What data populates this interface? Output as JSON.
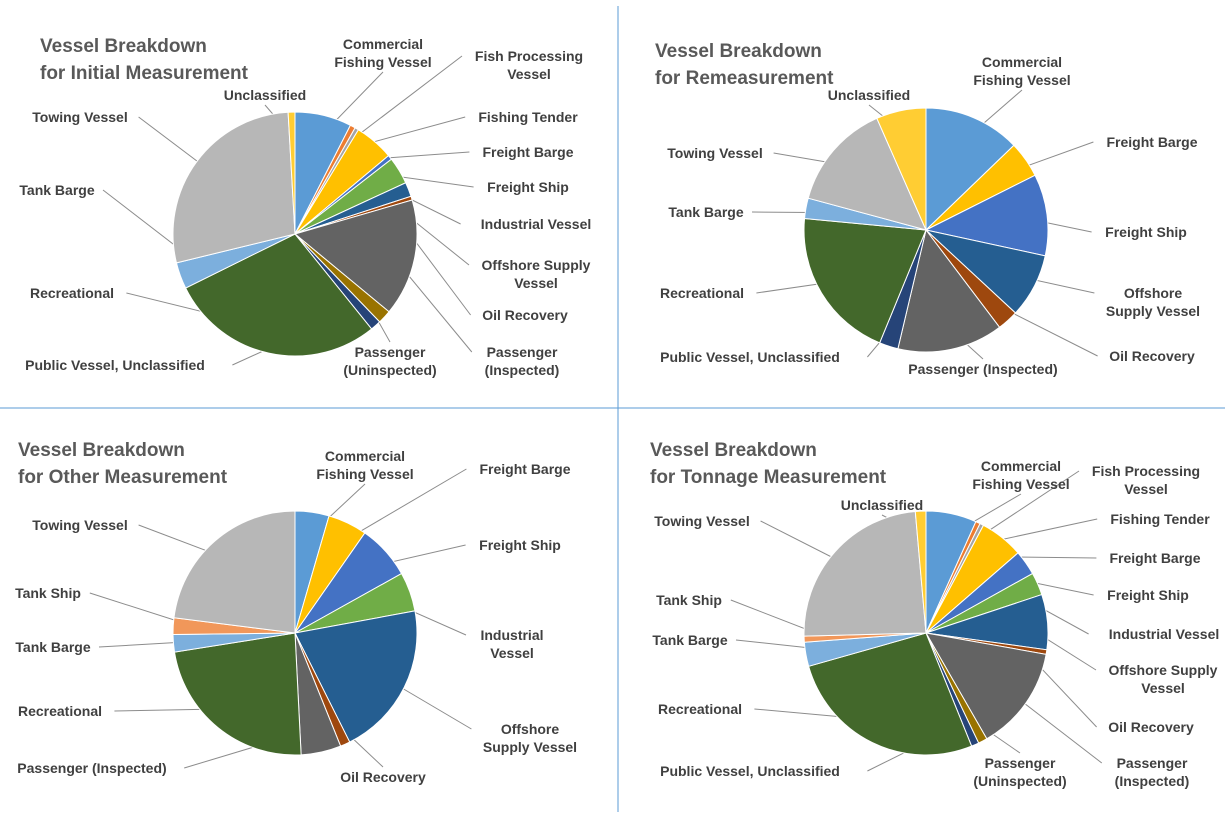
{
  "colors": {
    "Commercial Fishing Vessel": "#5b9bd5",
    "Fish Processing Vessel": "#ed7d31",
    "Fishing Tender": "#a5a5a5",
    "Freight Barge": "#ffc000",
    "Freight Ship": "#4472c4",
    "Industrial Vessel": "#70ad47",
    "Offshore Supply Vessel": "#255e91",
    "Oil Recovery": "#9e480e",
    "Passenger (Inspected)": "#636363",
    "Passenger (Uninspected)": "#997300",
    "Public Vessel, Unclassified": "#264478",
    "Recreational": "#43682b",
    "Tank Barge": "#7cafdd",
    "Tank Ship": "#f1975a",
    "Towing Vessel": "#b7b7b7",
    "Unclassified": "#ffcd33"
  },
  "chart_data": [
    {
      "type": "pie",
      "title": [
        "Vessel Breakdown",
        "for Initial Measurement"
      ],
      "slices": [
        {
          "category": "Commercial Fishing Vessel",
          "value": 7.5,
          "label": [
            "Commercial",
            "Fishing Vessel"
          ]
        },
        {
          "category": "Fish Processing Vessel",
          "value": 0.7,
          "label": [
            "Fish Processing",
            "Vessel"
          ]
        },
        {
          "category": "Fishing Tender",
          "value": 0.5,
          "label": [
            "Fishing Tender"
          ]
        },
        {
          "category": "Freight Barge",
          "value": 5.2,
          "label": [
            "Freight Barge"
          ]
        },
        {
          "category": "Freight Ship",
          "value": 0.6,
          "label": [
            "Freight Ship"
          ]
        },
        {
          "category": "Industrial Vessel",
          "value": 3.6,
          "label": [
            "Industrial Vessel"
          ]
        },
        {
          "category": "Offshore Supply Vessel",
          "value": 1.9,
          "label": [
            "Offshore Supply",
            "Vessel"
          ]
        },
        {
          "category": "Oil Recovery",
          "value": 0.5,
          "label": [
            "Oil Recovery"
          ]
        },
        {
          "category": "Passenger (Inspected)",
          "value": 15.5,
          "label": [
            "Passenger",
            "(Inspected)"
          ]
        },
        {
          "category": "Passenger (Uninspected)",
          "value": 1.8,
          "label": [
            "Passenger",
            "(Uninspected)"
          ]
        },
        {
          "category": "Public Vessel, Unclassified",
          "value": 1.4,
          "label": [
            "Public Vessel, Unclassified"
          ]
        },
        {
          "category": "Recreational",
          "value": 28.5,
          "label": [
            "Recreational"
          ]
        },
        {
          "category": "Tank Barge",
          "value": 3.5,
          "label": [
            "Tank Barge"
          ]
        },
        {
          "category": "Towing Vessel",
          "value": 27.9,
          "label": [
            "Towing Vessel"
          ]
        },
        {
          "category": "Unclassified",
          "value": 0.9,
          "label": [
            "Unclassified"
          ]
        }
      ]
    },
    {
      "type": "pie",
      "title": [
        "Vessel Breakdown",
        "for Remeasurement"
      ],
      "slices": [
        {
          "category": "Commercial Fishing Vessel",
          "value": 12.8,
          "label": [
            "Commercial",
            "Fishing Vessel"
          ]
        },
        {
          "category": "Freight Barge",
          "value": 4.8,
          "label": [
            "Freight Barge"
          ]
        },
        {
          "category": "Freight Ship",
          "value": 10.8,
          "label": [
            "Freight Ship"
          ]
        },
        {
          "category": "Offshore Supply Vessel",
          "value": 8.5,
          "label": [
            "Offshore",
            "Supply Vessel"
          ]
        },
        {
          "category": "Oil Recovery",
          "value": 2.8,
          "label": [
            "Oil Recovery"
          ]
        },
        {
          "category": "Passenger (Inspected)",
          "value": 14.0,
          "label": [
            "Passenger (Inspected)"
          ]
        },
        {
          "category": "Public Vessel, Unclassified",
          "value": 2.5,
          "label": [
            "Public Vessel, Unclassified"
          ]
        },
        {
          "category": "Recreational",
          "value": 20.3,
          "label": [
            "Recreational"
          ]
        },
        {
          "category": "Tank Barge",
          "value": 2.7,
          "label": [
            "Tank Barge"
          ]
        },
        {
          "category": "Towing Vessel",
          "value": 14.2,
          "label": [
            "Towing Vessel"
          ]
        },
        {
          "category": "Unclassified",
          "value": 6.6,
          "label": [
            "Unclassified"
          ]
        }
      ]
    },
    {
      "type": "pie",
      "title": [
        "Vessel Breakdown",
        "for Other Measurement"
      ],
      "slices": [
        {
          "category": "Commercial Fishing Vessel",
          "value": 4.5,
          "label": [
            "Commercial",
            "Fishing Vessel"
          ]
        },
        {
          "category": "Freight Barge",
          "value": 5.2,
          "label": [
            "Freight Barge"
          ]
        },
        {
          "category": "Freight Ship",
          "value": 7.2,
          "label": [
            "Freight Ship"
          ]
        },
        {
          "category": "Industrial Vessel",
          "value": 5.2,
          "label": [
            "Industrial",
            "Vessel"
          ]
        },
        {
          "category": "Offshore Supply Vessel",
          "value": 20.5,
          "label": [
            "Offshore",
            "Supply Vessel"
          ]
        },
        {
          "category": "Oil Recovery",
          "value": 1.3,
          "label": [
            "Oil Recovery"
          ]
        },
        {
          "category": "Passenger (Inspected)",
          "value": 5.3,
          "label": [
            "Passenger (Inspected)"
          ]
        },
        {
          "category": "Recreational",
          "value": 23.3,
          "label": [
            "Recreational"
          ]
        },
        {
          "category": "Tank Barge",
          "value": 2.3,
          "label": [
            "Tank Barge"
          ]
        },
        {
          "category": "Tank Ship",
          "value": 2.2,
          "label": [
            "Tank Ship"
          ]
        },
        {
          "category": "Towing Vessel",
          "value": 23.0,
          "label": [
            "Towing Vessel"
          ]
        }
      ]
    },
    {
      "type": "pie",
      "title": [
        "Vessel Breakdown",
        "for Tonnage Measurement"
      ],
      "slices": [
        {
          "category": "Commercial Fishing Vessel",
          "value": 6.7,
          "label": [
            "Commercial",
            "Fishing Vessel"
          ]
        },
        {
          "category": "Fish Processing Vessel",
          "value": 0.6,
          "label": [
            "Fish Processing",
            "Vessel"
          ]
        },
        {
          "category": "Fishing Tender",
          "value": 0.5,
          "label": [
            "Fishing Tender"
          ]
        },
        {
          "category": "Freight Barge",
          "value": 5.8,
          "label": [
            "Freight Barge"
          ]
        },
        {
          "category": "Freight Ship",
          "value": 3.3,
          "label": [
            "Freight Ship"
          ]
        },
        {
          "category": "Industrial Vessel",
          "value": 3.0,
          "label": [
            "Industrial Vessel"
          ]
        },
        {
          "category": "Offshore Supply Vessel",
          "value": 7.3,
          "label": [
            "Offshore Supply",
            "Vessel"
          ]
        },
        {
          "category": "Oil Recovery",
          "value": 0.6,
          "label": [
            "Oil Recovery"
          ]
        },
        {
          "category": "Passenger (Inspected)",
          "value": 13.9,
          "label": [
            "Passenger",
            "(Inspected)"
          ]
        },
        {
          "category": "Passenger (Uninspected)",
          "value": 1.2,
          "label": [
            "Passenger",
            "(Uninspected)"
          ]
        },
        {
          "category": "Public Vessel, Unclassified",
          "value": 1.0,
          "label": [
            "Public Vessel, Unclassified"
          ]
        },
        {
          "category": "Recreational",
          "value": 26.7,
          "label": [
            "Recreational"
          ]
        },
        {
          "category": "Tank Barge",
          "value": 3.2,
          "label": [
            "Tank Barge"
          ]
        },
        {
          "category": "Tank Ship",
          "value": 0.8,
          "label": [
            "Tank Ship"
          ]
        },
        {
          "category": "Towing Vessel",
          "value": 24.0,
          "label": [
            "Towing Vessel"
          ]
        },
        {
          "category": "Unclassified",
          "value": 1.4,
          "label": [
            "Unclassified"
          ]
        }
      ]
    }
  ]
}
